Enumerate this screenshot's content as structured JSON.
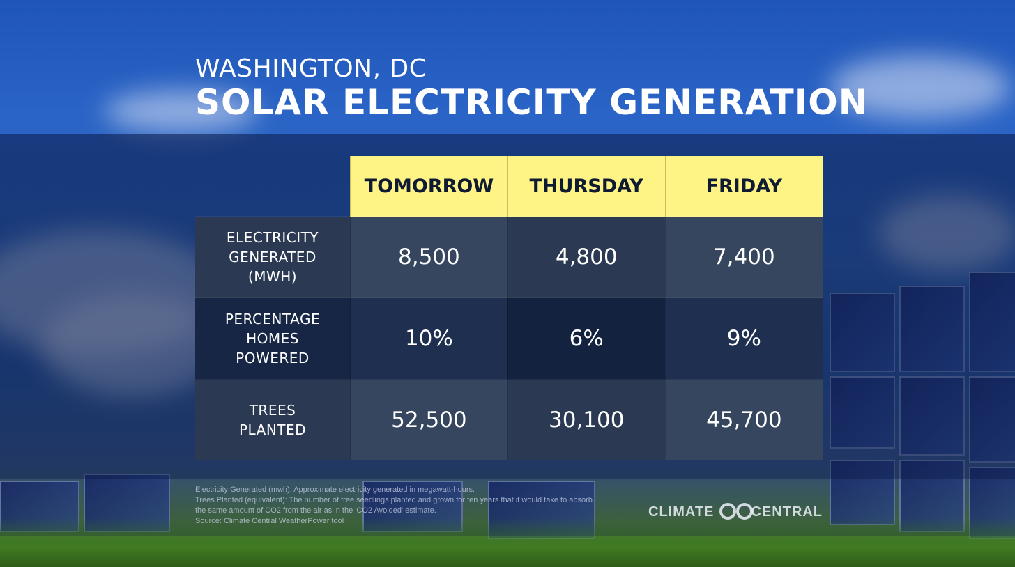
{
  "header": {
    "city": "WASHINGTON, DC",
    "title": "SOLAR ELECTRICITY GENERATION"
  },
  "table": {
    "columns": [
      "TOMORROW",
      "THURSDAY",
      "FRIDAY"
    ],
    "rows": [
      {
        "label": "ELECTRICITY\nGENERATED\n(MWH)",
        "values": [
          "8,500",
          "4,800",
          "7,400"
        ]
      },
      {
        "label": "PERCENTAGE\nHOMES\nPOWERED",
        "values": [
          "10%",
          "6%",
          "9%"
        ]
      },
      {
        "label": "TREES\nPLANTED",
        "values": [
          "52,500",
          "30,100",
          "45,700"
        ]
      }
    ]
  },
  "footnotes": [
    "Electricity Generated (mwh): Approximate electricity generated in megawatt-hours.",
    "Trees Planted (equivalent): The number of tree seedlings planted and grown for ten years that it would take to absorb",
    "the same amount of CO2 from the air as in the 'CO2 Avoided' estimate.",
    "Source: Climate Central WeatherPower tool"
  ],
  "logo": {
    "left": "CLIMATE",
    "right": "CENTRAL"
  },
  "colors": {
    "header_yellow": "#fef486",
    "header_text": "#0f1a33",
    "cell_light": "#35465e",
    "cell_dark": "#13223f"
  }
}
